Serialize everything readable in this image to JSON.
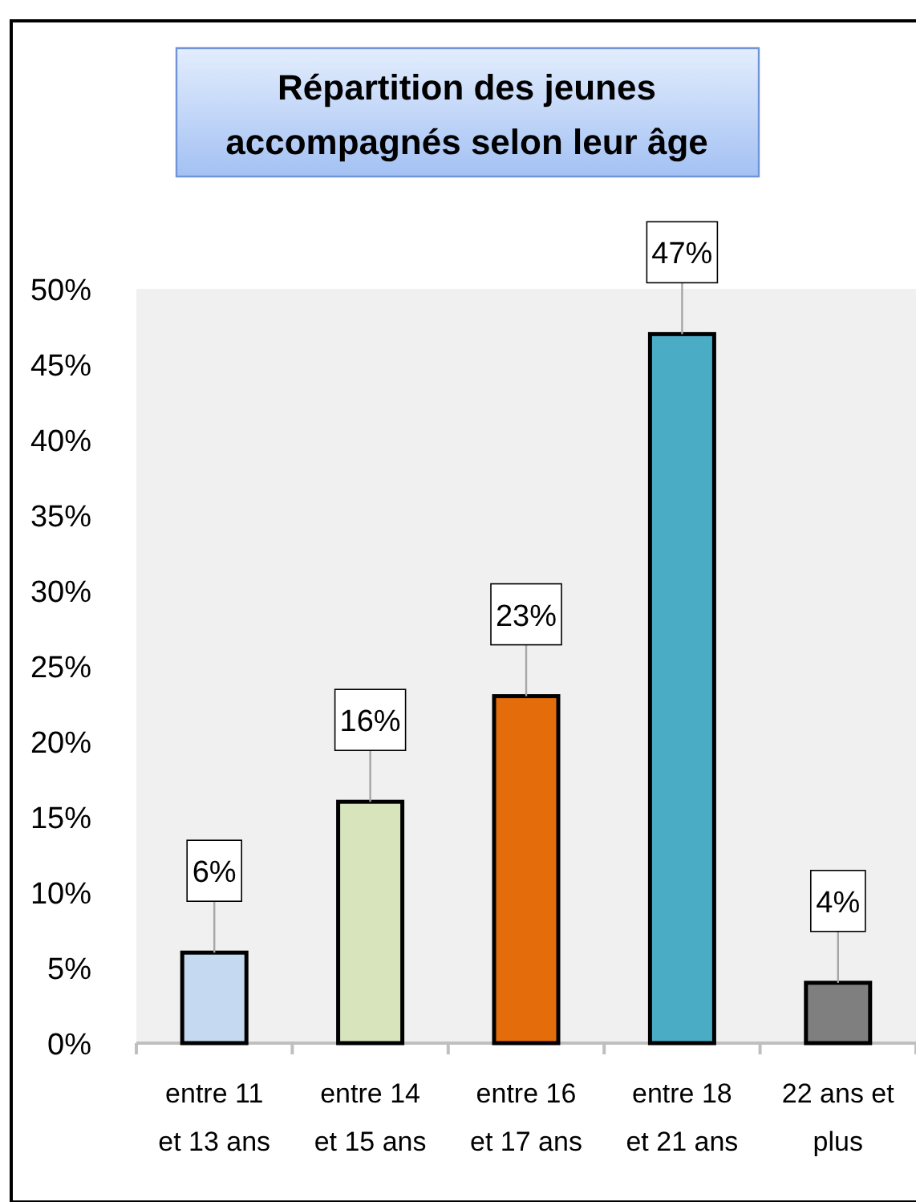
{
  "chart_data": {
    "type": "bar",
    "title": "Répartition des jeunes accompagnés selon leur âge",
    "categories": [
      "entre 11 et 13 ans",
      "entre 14 et 15 ans",
      "entre 16 et 17 ans",
      "entre 18 et 21 ans",
      "22 ans et plus"
    ],
    "values": [
      6,
      16,
      23,
      47,
      4
    ],
    "colors": [
      "#c5d9f1",
      "#d8e4bc",
      "#e46c0a",
      "#4bacc6",
      "#7f7f7f"
    ],
    "value_labels": [
      "6%",
      "16%",
      "23%",
      "47%",
      "4%"
    ],
    "ylim": [
      0,
      50
    ],
    "yticks": [
      {
        "value": 0,
        "label": "0%"
      },
      {
        "value": 5,
        "label": "5%"
      },
      {
        "value": 10,
        "label": "10%"
      },
      {
        "value": 15,
        "label": "15%"
      },
      {
        "value": 20,
        "label": "20%"
      },
      {
        "value": 25,
        "label": "25%"
      },
      {
        "value": 30,
        "label": "30%"
      },
      {
        "value": 35,
        "label": "35%"
      },
      {
        "value": 40,
        "label": "40%"
      },
      {
        "value": 45,
        "label": "45%"
      },
      {
        "value": 50,
        "label": "50%"
      }
    ]
  }
}
